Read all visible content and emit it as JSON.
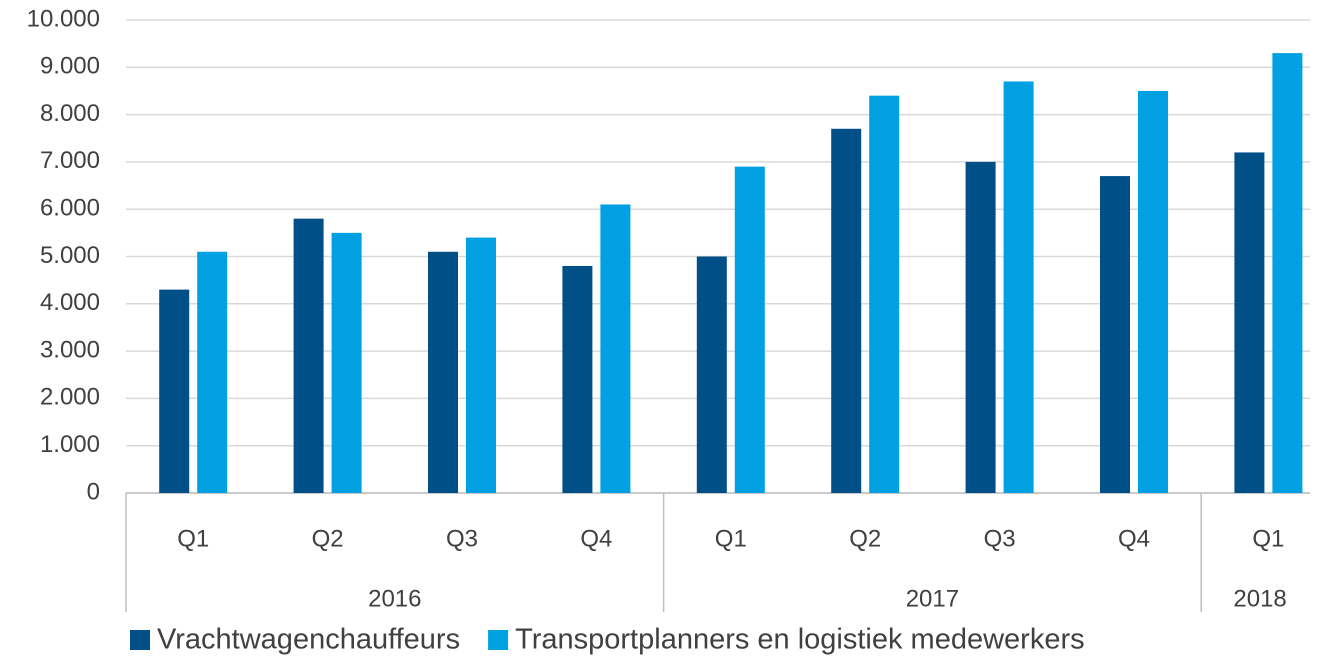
{
  "chart_data": {
    "type": "bar",
    "groups": [
      {
        "name": "2016",
        "categories": [
          "Q1",
          "Q2",
          "Q3",
          "Q4"
        ]
      },
      {
        "name": "2017",
        "categories": [
          "Q1",
          "Q2",
          "Q3",
          "Q4"
        ]
      },
      {
        "name": "2018",
        "categories": [
          "Q1"
        ]
      }
    ],
    "series": [
      {
        "name": "Vrachtwagenchauffeurs",
        "color": "#004f86",
        "values": [
          4300,
          5800,
          5100,
          4800,
          5000,
          7700,
          7000,
          6700,
          7200
        ]
      },
      {
        "name": "Transportplanners en logistiek medewerkers",
        "color": "#00a0e3",
        "values": [
          5100,
          5500,
          5400,
          6100,
          6900,
          8400,
          8700,
          8500,
          9300
        ]
      }
    ],
    "ylim": [
      0,
      10000
    ],
    "yticks": [
      0,
      {
        "value": 1000,
        "label": "1.000"
      },
      {
        "value": 2000,
        "label": "2.000"
      },
      {
        "value": 3000,
        "label": "3.000"
      },
      {
        "value": 4000,
        "label": "4.000"
      },
      {
        "value": 5000,
        "label": "5.000"
      },
      {
        "value": 6000,
        "label": "6.000"
      },
      {
        "value": 7000,
        "label": "7.000"
      },
      {
        "value": 8000,
        "label": "8.000"
      },
      {
        "value": 9000,
        "label": "9.000"
      },
      {
        "value": 10000,
        "label": "10.000"
      }
    ],
    "grid": true,
    "legend": "bottom"
  }
}
